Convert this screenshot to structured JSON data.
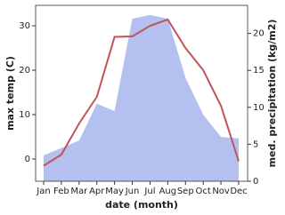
{
  "chart_data": {
    "type": "line-area",
    "x_label": "date (month)",
    "y_label": "max temp (C)",
    "y2_label": "med. precipitation (kg/m2)",
    "categories": [
      "Jan",
      "Feb",
      "Mar",
      "Apr",
      "May",
      "Jun",
      "Jul",
      "Aug",
      "Sep",
      "Oct",
      "Nov",
      "Dec"
    ],
    "ylim": [
      -5,
      34.6
    ],
    "yticks": [
      0,
      10,
      20,
      30
    ],
    "y2lim": [
      0,
      23.8
    ],
    "y2ticks": [
      0,
      5,
      10,
      15,
      20
    ],
    "series": [
      {
        "name": "max temp",
        "color": "#c0545a",
        "values": [
          -1.5,
          1,
          8,
          14,
          27.5,
          27.6,
          30,
          31.4,
          25,
          20,
          12,
          -0.5
        ]
      },
      {
        "name": "precipitation",
        "color": "#b3c0f0",
        "axis": "y2",
        "values": [
          3.5,
          4.5,
          5.5,
          10.5,
          9.5,
          22,
          22.5,
          22,
          14,
          9,
          6,
          5.8
        ]
      }
    ]
  }
}
